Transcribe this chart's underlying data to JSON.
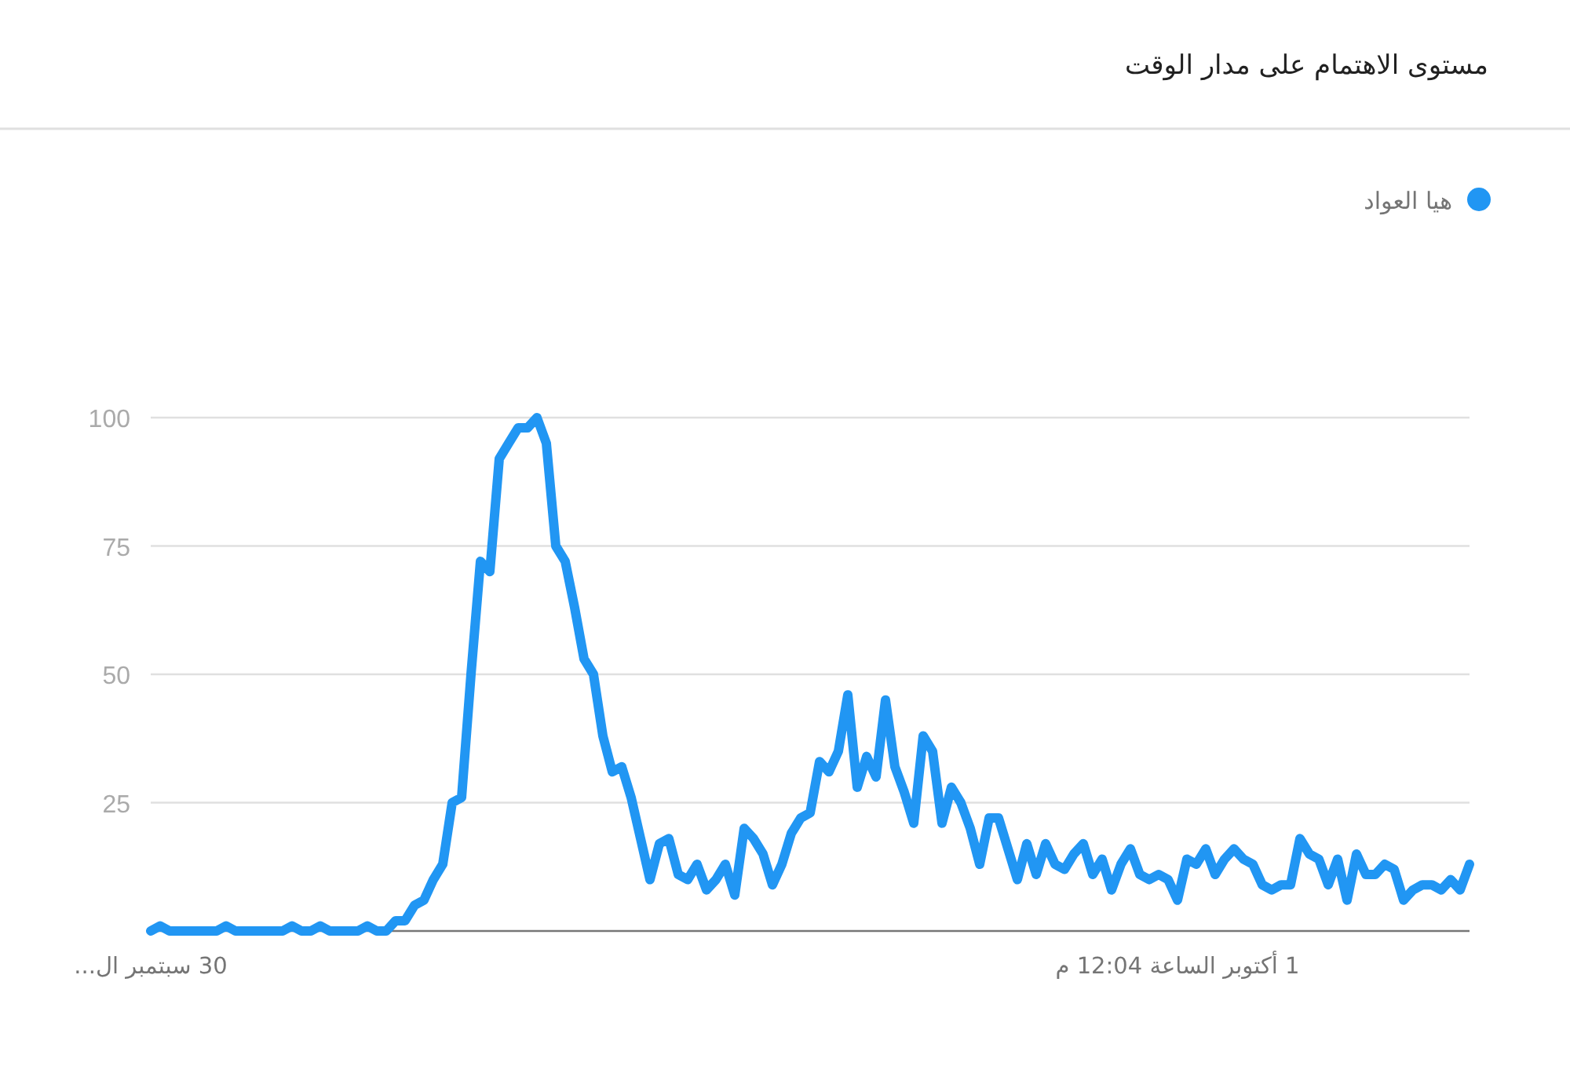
{
  "chart_data": {
    "type": "line",
    "title": "مستوى الاهتمام على مدار الوقت",
    "categories": [
      "30 سبتمبر ال...",
      null,
      null,
      null,
      null,
      null,
      null,
      null,
      null,
      null,
      null,
      null,
      null,
      null,
      null,
      null,
      null,
      null,
      null,
      null,
      null,
      null,
      null,
      null,
      null,
      null,
      null,
      null,
      null,
      null,
      null,
      null,
      null,
      null,
      null,
      null,
      null,
      null,
      null,
      null,
      null,
      null,
      null,
      null,
      null,
      null,
      null,
      null,
      null,
      null,
      null,
      null,
      null,
      null,
      null,
      null,
      null,
      null,
      null,
      null,
      null,
      null,
      null,
      null,
      null,
      null,
      null,
      null,
      null,
      null,
      null,
      null,
      null,
      null,
      null,
      null,
      null,
      null,
      null,
      null,
      null,
      null,
      null,
      null,
      null,
      null,
      null,
      null,
      null,
      null,
      null,
      null,
      null,
      null,
      null,
      null,
      null,
      null,
      null,
      null,
      null,
      null,
      null,
      null,
      null,
      null,
      null,
      null,
      null,
      "1 أكتوبر الساعة 12:04 م",
      null,
      null,
      null,
      null,
      null,
      null,
      null,
      null,
      null,
      null,
      null,
      null,
      null,
      null,
      null,
      null,
      null,
      null,
      null,
      null,
      null,
      null,
      null,
      null,
      null,
      null,
      null,
      null,
      null,
      null,
      null
    ],
    "series": [
      {
        "name": "هيا العواد",
        "color": "#2196f3",
        "values": [
          0,
          1,
          0,
          0,
          0,
          0,
          0,
          0,
          1,
          0,
          0,
          0,
          0,
          0,
          0,
          1,
          0,
          0,
          1,
          0,
          0,
          0,
          0,
          1,
          0,
          0,
          2,
          2,
          5,
          6,
          10,
          13,
          25,
          26,
          50,
          72,
          70,
          92,
          95,
          98,
          98,
          100,
          95,
          75,
          72,
          63,
          53,
          50,
          38,
          31,
          32,
          26,
          18,
          10,
          17,
          18,
          11,
          10,
          13,
          8,
          10,
          13,
          7,
          20,
          18,
          15,
          9,
          13,
          19,
          22,
          23,
          33,
          31,
          35,
          46,
          28,
          34,
          30,
          45,
          32,
          27,
          21,
          38,
          35,
          21,
          28,
          25,
          20,
          13,
          22,
          22,
          16,
          10,
          17,
          11,
          17,
          13,
          12,
          15,
          17,
          11,
          14,
          8,
          13,
          16,
          11,
          10,
          11,
          10,
          6,
          14,
          13,
          16,
          11,
          14,
          16,
          14,
          13,
          9,
          8,
          9,
          9,
          18,
          15,
          14,
          9,
          14,
          6,
          15,
          11,
          11,
          13,
          12,
          6,
          8,
          9,
          9,
          8,
          10,
          8,
          13
        ]
      }
    ],
    "ylim": [
      0,
      100
    ],
    "yticks": [
      25,
      50,
      75,
      100
    ],
    "grid": "y",
    "legend": "top right",
    "line_style": "solid"
  }
}
